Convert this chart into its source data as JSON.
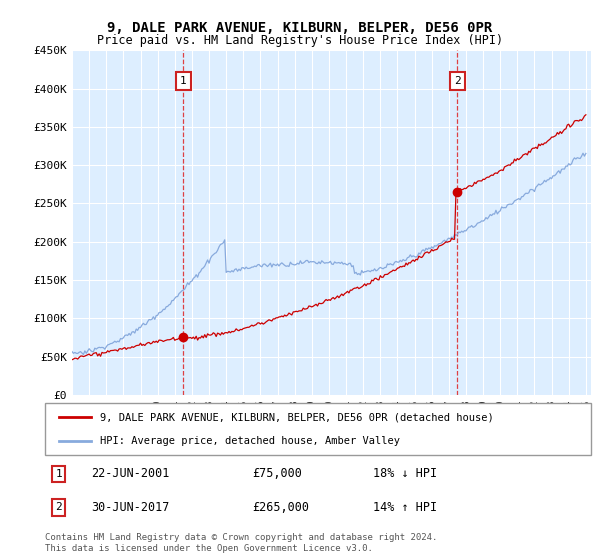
{
  "title": "9, DALE PARK AVENUE, KILBURN, BELPER, DE56 0PR",
  "subtitle": "Price paid vs. HM Land Registry's House Price Index (HPI)",
  "plot_bg_color": "#ddeeff",
  "ylim": [
    0,
    450000
  ],
  "yticks": [
    0,
    50000,
    100000,
    150000,
    200000,
    250000,
    300000,
    350000,
    400000,
    450000
  ],
  "ytick_labels": [
    "£0",
    "£50K",
    "£100K",
    "£150K",
    "£200K",
    "£250K",
    "£300K",
    "£350K",
    "£400K",
    "£450K"
  ],
  "sale1_year": 2001.47,
  "sale1_price": 75000,
  "sale2_year": 2017.49,
  "sale2_price": 265000,
  "legend_line1": "9, DALE PARK AVENUE, KILBURN, BELPER, DE56 0PR (detached house)",
  "legend_line2": "HPI: Average price, detached house, Amber Valley",
  "annotation1_date": "22-JUN-2001",
  "annotation1_price": "£75,000",
  "annotation1_hpi": "18% ↓ HPI",
  "annotation2_date": "30-JUN-2017",
  "annotation2_price": "£265,000",
  "annotation2_hpi": "14% ↑ HPI",
  "footer": "Contains HM Land Registry data © Crown copyright and database right 2024.\nThis data is licensed under the Open Government Licence v3.0.",
  "line_red_color": "#cc0000",
  "line_blue_color": "#88aadd",
  "x_start_year": 1995,
  "x_end_year": 2025
}
